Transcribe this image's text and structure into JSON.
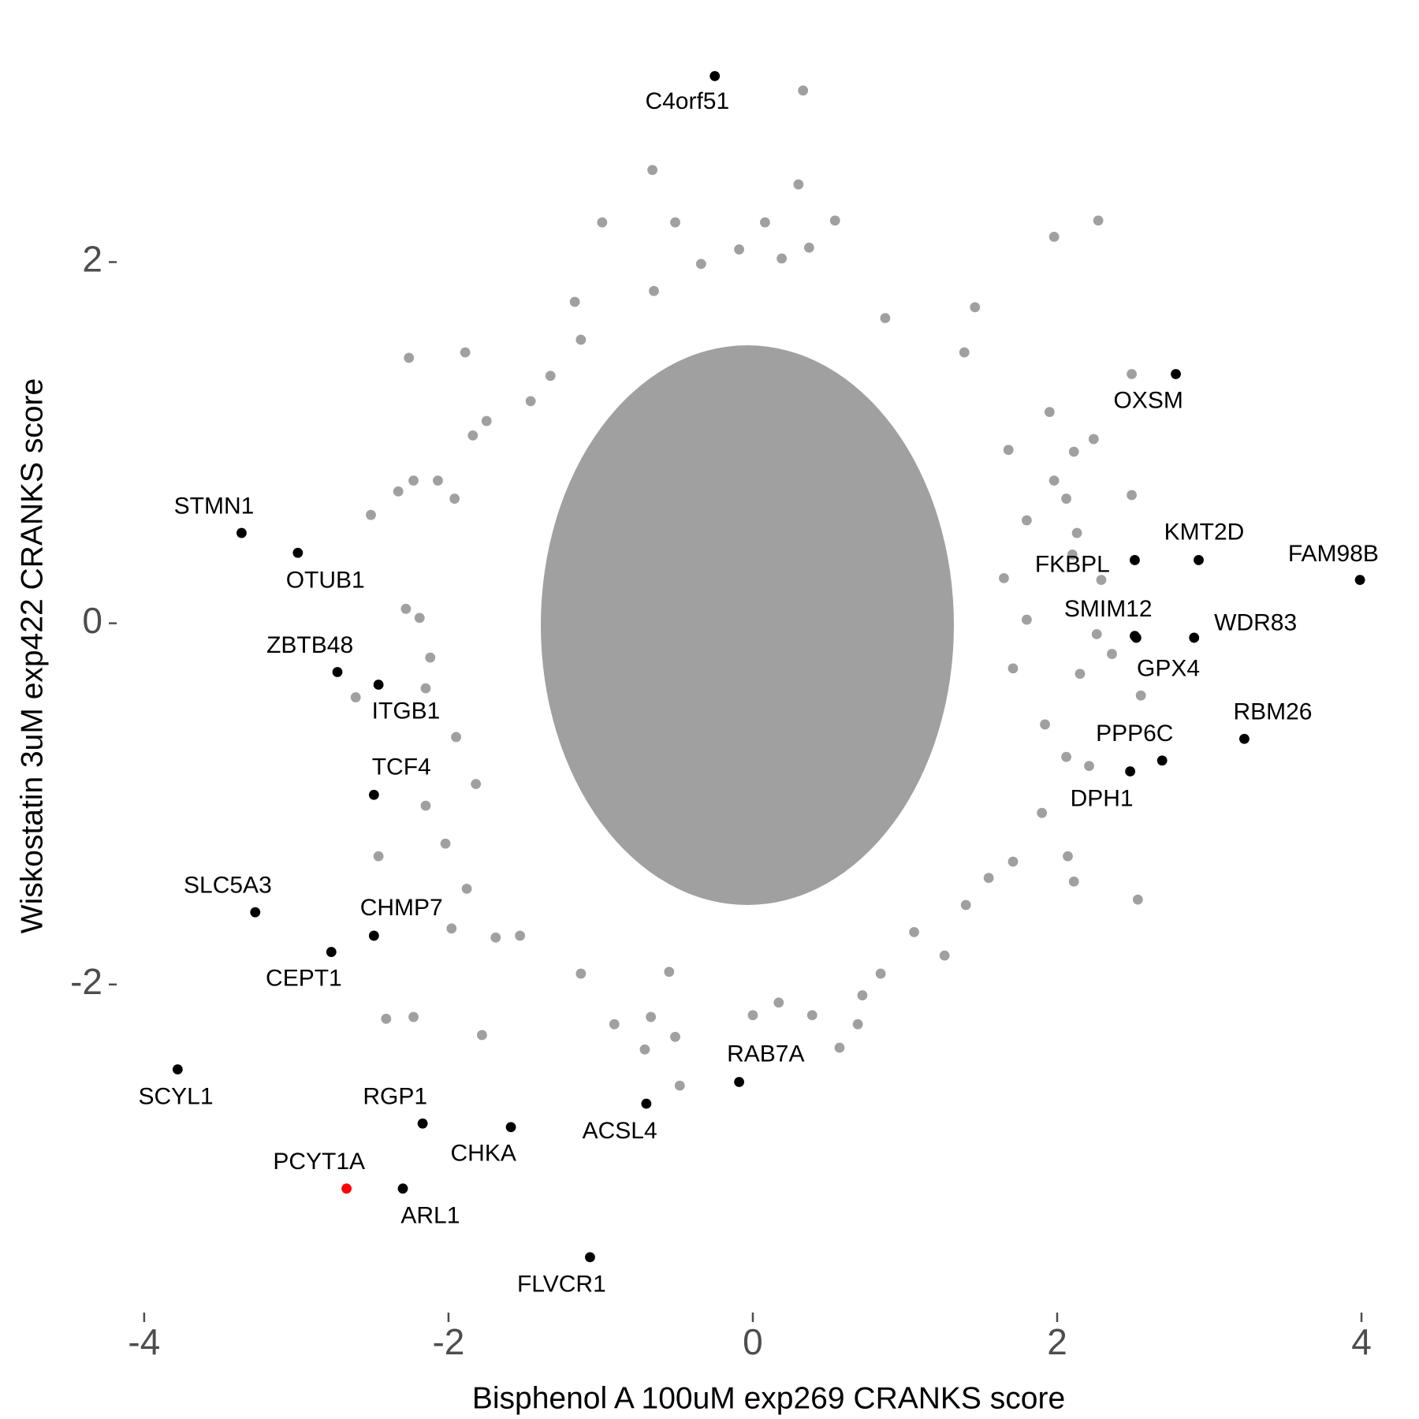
{
  "chart_data": {
    "type": "scatter",
    "x_label": "Bisphenol A 100uM exp269 CRANKS score",
    "y_label": "Wiskostatin 3uM exp422 CRANKS score",
    "xlim": [
      -4.16,
      4.15
    ],
    "ylim": [
      -3.76,
      3.15
    ],
    "xticks": [
      -4,
      -2,
      0,
      2,
      4
    ],
    "yticks": [
      -2,
      0,
      2
    ],
    "grid": false,
    "series": [
      {
        "color": "#a0a0a0",
        "x": [
          0.33,
          -0.66,
          0.3,
          2.27,
          1.98,
          -0.99,
          -0.51,
          0.08,
          0.54,
          -0.09,
          0.37,
          -0.34,
          0.19,
          -0.65,
          -1.17,
          1.46,
          0.87,
          -2.26,
          -1.89,
          2.49,
          1.39,
          1.95,
          2.24,
          2.11,
          1.68,
          2.49,
          2.06,
          1.98,
          2.13,
          2.1,
          2.29,
          2.26,
          2.36,
          2.15,
          2.55,
          2.06,
          2.21,
          1.9,
          2.07,
          2.11,
          2.53,
          1.71,
          1.55,
          1.4,
          1.26,
          1.06,
          0.84,
          0.72,
          0.69,
          0.57,
          0.39,
          0.17,
          0,
          -0.51,
          -0.71,
          -0.48,
          -0.91,
          -0.67,
          -1.13,
          -1.53,
          -1.69,
          -1.98,
          -1.78,
          -2.23,
          -2.41,
          -2.46,
          -2.15,
          -2.02,
          -2.61,
          -2.15,
          -2.12,
          -2.28,
          -2.19,
          -2.51,
          -2.33,
          -2.23,
          -2.07,
          -1.96,
          -1.75,
          -1.84,
          -1.46,
          -1.33,
          -1.13,
          -1.95,
          -1.82,
          -1.88,
          -0.55,
          1.71,
          1.8,
          1.92,
          1.8,
          1.65
        ],
        "y": [
          2.95,
          2.51,
          2.43,
          2.23,
          2.14,
          2.22,
          2.22,
          2.22,
          2.23,
          2.07,
          2.08,
          1.99,
          2.02,
          1.84,
          1.78,
          1.75,
          1.69,
          1.47,
          1.5,
          1.38,
          1.5,
          1.17,
          1.02,
          0.95,
          0.96,
          0.71,
          0.69,
          0.79,
          0.5,
          0.38,
          0.24,
          -0.06,
          -0.17,
          -0.28,
          -0.4,
          -0.74,
          -0.79,
          -1.05,
          -1.29,
          -1.43,
          -1.53,
          -1.32,
          -1.41,
          -1.56,
          -1.84,
          -1.71,
          -1.94,
          -2.06,
          -2.22,
          -2.35,
          -2.17,
          -2.1,
          -2.17,
          -2.29,
          -2.36,
          -2.56,
          -2.22,
          -2.18,
          -1.94,
          -1.73,
          -1.74,
          -1.69,
          -2.28,
          -2.18,
          -2.19,
          -1.29,
          -1.01,
          -1.22,
          -0.41,
          -0.36,
          -0.19,
          0.08,
          0.03,
          0.6,
          0.73,
          0.79,
          0.79,
          0.69,
          1.12,
          1.04,
          1.23,
          1.37,
          1.57,
          -0.63,
          -0.89,
          -1.47,
          -1.93,
          -0.25,
          0.02,
          -0.56,
          0.57,
          0.25
        ]
      },
      {
        "color": "#000000",
        "labels": [
          "C4orf51",
          "OXSM",
          "KMT2D",
          "FKBPL",
          "FAM98B",
          "SMIM12",
          "WDR83",
          "GPX4",
          "RBM26",
          "PPP6C",
          "DPH1",
          "STMN1",
          "OTUB1",
          "ZBTB48",
          "ITGB1",
          "TCF4",
          "SLC5A3",
          "CHMP7",
          "CEPT1",
          "SCYL1",
          "RGP1",
          "CHKA",
          "ACSL4",
          "RAB7A",
          "ARL1",
          "FLVCR1"
        ],
        "x": [
          -0.25,
          2.78,
          2.93,
          2.51,
          3.99,
          2.51,
          2.9,
          2.52,
          3.23,
          2.69,
          2.48,
          -3.36,
          -2.99,
          -2.73,
          -2.46,
          -2.49,
          -3.27,
          -2.49,
          -2.77,
          -3.78,
          -2.17,
          -1.59,
          -0.7,
          -0.09,
          -2.3,
          -1.07
        ],
        "y": [
          3.03,
          1.38,
          0.35,
          0.35,
          0.24,
          -0.07,
          -0.08,
          -0.08,
          -0.64,
          -0.76,
          -0.82,
          0.5,
          0.39,
          -0.27,
          -0.34,
          -0.95,
          -1.6,
          -1.73,
          -1.82,
          -2.47,
          -2.77,
          -2.79,
          -2.66,
          -2.54,
          -3.13,
          -3.51
        ]
      },
      {
        "color": "#ff0000",
        "labels": [
          "PCYT1A"
        ],
        "x": [
          -2.67
        ],
        "y": [
          -3.13
        ]
      }
    ]
  }
}
